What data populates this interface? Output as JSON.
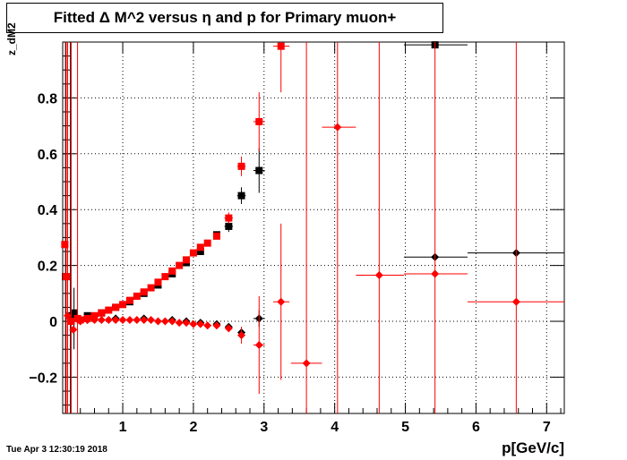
{
  "title": "Fitted Δ M^2 versus η and p for Primary muon+",
  "timestamp": "Tue Apr  3 12:30:19 2018",
  "chart_data": {
    "type": "scatter",
    "title": "Fitted Δ M^2 versus η and p for Primary muon+",
    "xlabel": "p[GeV/c]",
    "ylabel": "z_dM2",
    "xlim": [
      0.15,
      7.25
    ],
    "ylim": [
      -0.33,
      1.0
    ],
    "xticks": [
      1,
      2,
      3,
      4,
      5,
      6,
      7
    ],
    "yticks": [
      -0.2,
      0,
      0.2,
      0.4,
      0.6,
      0.8
    ],
    "ytick_labels": [
      "−0.2",
      "0",
      "0.2",
      "0.4",
      "0.6",
      "0.8"
    ],
    "grid": true,
    "colors": {
      "black": "#000000",
      "red": "#ff0000"
    },
    "series": [
      {
        "marker": "square",
        "color": "#000000",
        "points": [
          {
            "x": 0.19,
            "y": 0.16,
            "ylo": -0.33,
            "yhi": 1.0
          },
          {
            "x": 0.26,
            "y": 0.02,
            "ylo": -0.33,
            "yhi": 1.0
          },
          {
            "x": 0.31,
            "y": 0.03,
            "ylo": -0.1,
            "yhi": 0.12
          },
          {
            "x": 0.5,
            "y": 0.02
          },
          {
            "x": 0.7,
            "y": 0.03
          },
          {
            "x": 0.9,
            "y": 0.05
          },
          {
            "x": 1.1,
            "y": 0.07
          },
          {
            "x": 1.3,
            "y": 0.1
          },
          {
            "x": 1.5,
            "y": 0.13
          },
          {
            "x": 1.7,
            "y": 0.17
          },
          {
            "x": 1.9,
            "y": 0.21
          },
          {
            "x": 2.1,
            "y": 0.25
          },
          {
            "x": 2.33,
            "y": 0.31,
            "xlo": 2.28,
            "xhi": 2.38
          },
          {
            "x": 2.5,
            "y": 0.34,
            "xlo": 2.44,
            "xhi": 2.56,
            "ylo": 0.32,
            "yhi": 0.36
          },
          {
            "x": 2.68,
            "y": 0.45,
            "xlo": 2.62,
            "xhi": 2.74,
            "ylo": 0.42,
            "yhi": 0.48
          },
          {
            "x": 2.93,
            "y": 0.54,
            "xlo": 2.85,
            "xhi": 3.01,
            "ylo": 0.46,
            "yhi": 0.62
          },
          {
            "x": 5.42,
            "y": 0.99,
            "xlo": 4.98,
            "xhi": 5.88
          }
        ]
      },
      {
        "marker": "diamond",
        "color": "#000000",
        "points": [
          {
            "x": 0.5,
            "y": 0.005
          },
          {
            "x": 0.9,
            "y": 0.01
          },
          {
            "x": 1.3,
            "y": 0.01
          },
          {
            "x": 1.7,
            "y": 0.005
          },
          {
            "x": 1.9,
            "y": 0.0
          },
          {
            "x": 2.1,
            "y": -0.005
          },
          {
            "x": 2.33,
            "y": -0.01
          },
          {
            "x": 2.5,
            "y": -0.02
          },
          {
            "x": 2.68,
            "y": -0.04,
            "ylo": -0.06,
            "yhi": -0.02
          },
          {
            "x": 2.93,
            "y": 0.01,
            "xlo": 2.85,
            "xhi": 3.01,
            "ylo": -0.02,
            "yhi": 0.04
          },
          {
            "x": 5.42,
            "y": 0.23,
            "xlo": 4.98,
            "xhi": 5.88
          },
          {
            "x": 6.57,
            "y": 0.245,
            "xlo": 5.88,
            "xhi": 7.25
          }
        ]
      },
      {
        "marker": "square",
        "color": "#ff0000",
        "points": [
          {
            "x": 0.18,
            "y": 0.275
          },
          {
            "x": 0.2,
            "y": 0.16,
            "ylo": -0.33,
            "yhi": 1.0
          },
          {
            "x": 0.27,
            "y": 0.0,
            "ylo": -0.33,
            "yhi": 1.0
          },
          {
            "x": 0.36,
            "y": 0.01,
            "ylo": -0.33,
            "yhi": 1.0
          },
          {
            "x": 0.4,
            "y": 0.005
          },
          {
            "x": 0.5,
            "y": 0.01
          },
          {
            "x": 0.6,
            "y": 0.02
          },
          {
            "x": 0.7,
            "y": 0.03
          },
          {
            "x": 0.8,
            "y": 0.04
          },
          {
            "x": 0.9,
            "y": 0.05
          },
          {
            "x": 1.0,
            "y": 0.06
          },
          {
            "x": 1.1,
            "y": 0.075
          },
          {
            "x": 1.2,
            "y": 0.09
          },
          {
            "x": 1.3,
            "y": 0.105
          },
          {
            "x": 1.4,
            "y": 0.12
          },
          {
            "x": 1.5,
            "y": 0.14
          },
          {
            "x": 1.6,
            "y": 0.16
          },
          {
            "x": 1.7,
            "y": 0.18
          },
          {
            "x": 1.8,
            "y": 0.2
          },
          {
            "x": 1.9,
            "y": 0.22
          },
          {
            "x": 2.0,
            "y": 0.245
          },
          {
            "x": 2.1,
            "y": 0.265
          },
          {
            "x": 2.2,
            "y": 0.28
          },
          {
            "x": 2.33,
            "y": 0.305,
            "xlo": 2.28,
            "xhi": 2.38
          },
          {
            "x": 2.5,
            "y": 0.37,
            "xlo": 2.44,
            "xhi": 2.56,
            "ylo": 0.35,
            "yhi": 0.39
          },
          {
            "x": 2.68,
            "y": 0.555,
            "xlo": 2.62,
            "xhi": 2.74,
            "ylo": 0.52,
            "yhi": 0.59
          },
          {
            "x": 2.93,
            "y": 0.715,
            "xlo": 2.85,
            "xhi": 3.01,
            "ylo": 0.61,
            "yhi": 0.82
          },
          {
            "x": 3.24,
            "y": 0.985,
            "xlo": 3.13,
            "xhi": 3.36,
            "ylo": 0.82,
            "yhi": 1.0
          }
        ]
      },
      {
        "marker": "diamond",
        "color": "#ff0000",
        "points": [
          {
            "x": 0.22,
            "y": 0.02,
            "ylo": -0.33,
            "yhi": 1.0
          },
          {
            "x": 0.3,
            "y": -0.03
          },
          {
            "x": 0.4,
            "y": 0.0
          },
          {
            "x": 0.5,
            "y": 0.005
          },
          {
            "x": 0.6,
            "y": 0.005
          },
          {
            "x": 0.7,
            "y": 0.005
          },
          {
            "x": 0.8,
            "y": 0.005
          },
          {
            "x": 0.9,
            "y": 0.005
          },
          {
            "x": 1.0,
            "y": 0.005
          },
          {
            "x": 1.1,
            "y": 0.005
          },
          {
            "x": 1.2,
            "y": 0.005
          },
          {
            "x": 1.3,
            "y": 0.005
          },
          {
            "x": 1.4,
            "y": 0.005
          },
          {
            "x": 1.5,
            "y": 0.0
          },
          {
            "x": 1.6,
            "y": 0.0
          },
          {
            "x": 1.7,
            "y": 0.0
          },
          {
            "x": 1.8,
            "y": -0.005
          },
          {
            "x": 1.9,
            "y": -0.005
          },
          {
            "x": 2.0,
            "y": -0.01
          },
          {
            "x": 2.1,
            "y": -0.01
          },
          {
            "x": 2.2,
            "y": -0.015
          },
          {
            "x": 2.33,
            "y": -0.015
          },
          {
            "x": 2.5,
            "y": -0.025
          },
          {
            "x": 2.68,
            "y": -0.05,
            "ylo": -0.08,
            "yhi": -0.02
          },
          {
            "x": 2.93,
            "y": -0.085,
            "xlo": 2.85,
            "xhi": 3.01,
            "ylo": -0.26,
            "yhi": 0.09
          },
          {
            "x": 3.24,
            "y": 0.07,
            "xlo": 3.13,
            "xhi": 3.36,
            "ylo": -0.21,
            "yhi": 0.35
          },
          {
            "x": 3.6,
            "y": -0.15,
            "xlo": 3.38,
            "xhi": 3.82,
            "ylo": -0.33,
            "yhi": 1.0
          },
          {
            "x": 4.04,
            "y": 0.695,
            "xlo": 3.82,
            "xhi": 4.3,
            "ylo": -0.33,
            "yhi": 1.0
          },
          {
            "x": 4.63,
            "y": 0.165,
            "xlo": 4.3,
            "xhi": 4.98,
            "ylo": -0.33,
            "yhi": 1.0
          },
          {
            "x": 5.42,
            "y": 0.17,
            "xlo": 4.98,
            "xhi": 5.88,
            "ylo": -0.33,
            "yhi": 1.0
          },
          {
            "x": 6.57,
            "y": 0.07,
            "xlo": 5.88,
            "xhi": 7.25,
            "ylo": -0.33,
            "yhi": 1.0
          }
        ]
      }
    ]
  }
}
